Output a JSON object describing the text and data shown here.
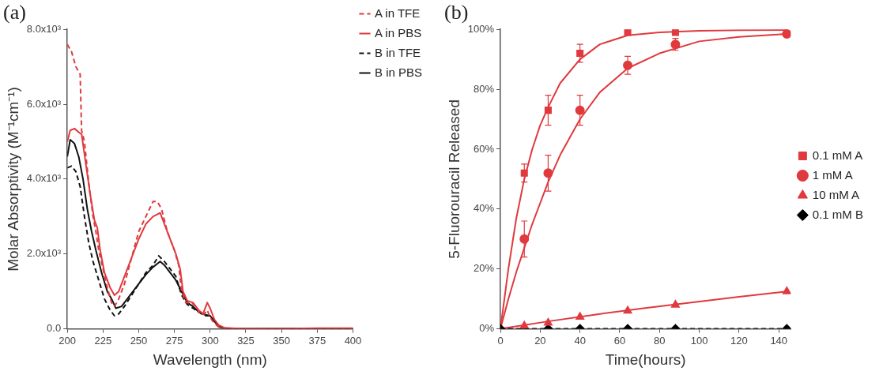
{
  "chart_data": [
    {
      "type": "line",
      "title": "(a)",
      "xlabel": "Wavelength (nm)",
      "ylabel": "Molar Absorptivity (M⁻¹cm⁻¹)",
      "xlim": [
        200,
        400
      ],
      "xticks": [
        200,
        225,
        250,
        275,
        300,
        325,
        350,
        375,
        400
      ],
      "ylim": [
        0,
        8000
      ],
      "yticks": [
        {
          "value": 0,
          "label": "0.0"
        },
        {
          "value": 2000,
          "label": "2.0x10³"
        },
        {
          "value": 4000,
          "label": "4.0x10³"
        },
        {
          "value": 6000,
          "label": "6.0x10³"
        },
        {
          "value": 8000,
          "label": "8.0x10³"
        }
      ],
      "grid": false,
      "legend": "top right",
      "marker": "none",
      "series": [
        {
          "name": "A in TFE",
          "color": "#e0393e",
          "line_style": "dashed",
          "x": [
            200,
            203,
            206,
            209,
            210,
            212,
            215,
            218,
            220,
            222,
            225,
            228,
            231,
            233,
            236,
            240,
            245,
            250,
            255,
            260,
            263,
            266,
            270,
            275,
            278,
            280,
            283,
            287,
            290,
            293,
            296,
            298,
            300,
            303,
            306,
            310,
            320,
            350,
            400
          ],
          "values": [
            7600,
            7400,
            7000,
            6800,
            5300,
            5000,
            3900,
            3000,
            2600,
            2100,
            1600,
            1100,
            700,
            600,
            800,
            1200,
            1900,
            2600,
            3000,
            3400,
            3400,
            3200,
            2600,
            2100,
            1700,
            1000,
            700,
            700,
            600,
            400,
            400,
            500,
            300,
            150,
            50,
            20,
            0,
            0,
            0
          ]
        },
        {
          "name": "A in PBS",
          "color": "#e0393e",
          "line_style": "solid",
          "x": [
            200,
            202,
            205,
            208,
            210,
            213,
            216,
            219,
            221,
            223,
            226,
            230,
            233,
            236,
            240,
            245,
            250,
            255,
            260,
            265,
            268,
            272,
            276,
            279,
            281,
            284,
            288,
            292,
            295,
            298,
            300,
            303,
            306,
            310,
            320,
            350,
            375,
            400
          ],
          "values": [
            5000,
            5300,
            5350,
            5250,
            5200,
            4400,
            3600,
            2900,
            2700,
            2100,
            1500,
            1100,
            900,
            1000,
            1400,
            1900,
            2400,
            2800,
            3000,
            3100,
            2800,
            2400,
            2000,
            1600,
            1000,
            750,
            700,
            500,
            400,
            700,
            550,
            250,
            100,
            30,
            10,
            0,
            20,
            20
          ]
        },
        {
          "name": "B in TFE",
          "color": "#111111",
          "line_style": "dashed",
          "x": [
            200,
            203,
            206,
            209,
            212,
            215,
            218,
            222,
            226,
            230,
            233,
            236,
            240,
            245,
            250,
            255,
            260,
            264,
            268,
            272,
            276,
            280,
            284,
            288,
            292,
            296,
            300,
            303,
            306,
            310,
            320,
            400
          ],
          "values": [
            4300,
            4350,
            4200,
            3800,
            3000,
            2300,
            1800,
            1300,
            800,
            500,
            350,
            400,
            600,
            900,
            1200,
            1500,
            1700,
            1950,
            1800,
            1600,
            1400,
            900,
            650,
            550,
            450,
            350,
            350,
            200,
            60,
            20,
            0,
            0
          ]
        },
        {
          "name": "B in PBS",
          "color": "#111111",
          "line_style": "solid",
          "x": [
            200,
            202,
            205,
            208,
            211,
            214,
            217,
            220,
            224,
            228,
            231,
            234,
            238,
            242,
            246,
            250,
            255,
            260,
            265,
            268,
            272,
            276,
            280,
            284,
            288,
            292,
            296,
            300,
            303,
            306,
            310,
            320,
            400
          ],
          "values": [
            4600,
            5050,
            4950,
            4600,
            4000,
            3200,
            2600,
            2100,
            1500,
            1000,
            800,
            550,
            600,
            800,
            1000,
            1200,
            1450,
            1650,
            1800,
            1700,
            1500,
            1300,
            1000,
            700,
            600,
            450,
            380,
            350,
            200,
            60,
            20,
            0,
            10
          ]
        }
      ]
    },
    {
      "type": "scatter",
      "title": "(b)",
      "xlabel": "Time(hours)",
      "ylabel": "5-Fluorouracil Released",
      "xlim": [
        0,
        146
      ],
      "xticks": [
        0,
        20,
        40,
        60,
        80,
        100,
        120,
        140
      ],
      "ylim": [
        0,
        100
      ],
      "yticks": [
        {
          "value": 0,
          "label": "0%"
        },
        {
          "value": 20,
          "label": "20%"
        },
        {
          "value": 40,
          "label": "40%"
        },
        {
          "value": 60,
          "label": "60%"
        },
        {
          "value": 80,
          "label": "80%"
        },
        {
          "value": 100,
          "label": "100%"
        }
      ],
      "grid": false,
      "legend": "right",
      "series": [
        {
          "name": "0.1 mM A",
          "color": "#e0393e",
          "marker": "square",
          "x": [
            12,
            24,
            40,
            64,
            88
          ],
          "values": [
            52,
            73,
            92,
            99,
            99
          ],
          "errors": [
            3,
            5,
            3,
            null,
            null
          ]
        },
        {
          "name": "1 mM A",
          "color": "#e0393e",
          "marker": "circle",
          "x": [
            12,
            24,
            40,
            64,
            88,
            144
          ],
          "values": [
            30,
            52,
            73,
            88,
            95,
            98.5
          ],
          "errors": [
            6,
            6,
            5,
            3,
            2,
            null
          ]
        },
        {
          "name": "10 mM A",
          "color": "#e0393e",
          "marker": "triangle",
          "x": [
            12,
            24,
            40,
            64,
            88,
            144
          ],
          "values": [
            1,
            2,
            4,
            6,
            8,
            12.5
          ]
        },
        {
          "name": "0.1 mM B",
          "color": "#000000",
          "type": "line",
          "marker": "diamond",
          "line_style": "dashed",
          "x": [
            0,
            12,
            24,
            40,
            64,
            88,
            144
          ],
          "values": [
            0,
            0,
            0,
            0,
            0,
            0,
            0
          ]
        },
        {
          "color": "#e0393e",
          "type": "line",
          "marker": "none",
          "x": [
            0,
            4,
            8,
            12,
            16,
            20,
            24,
            30,
            40,
            50,
            64,
            80,
            100,
            120,
            144
          ],
          "values": [
            0,
            20,
            37,
            50,
            60,
            68,
            74,
            82,
            90,
            95,
            98,
            99,
            99.5,
            99.7,
            99.8
          ]
        },
        {
          "color": "#e0393e",
          "type": "line",
          "marker": "none",
          "x": [
            0,
            4,
            8,
            12,
            16,
            20,
            24,
            30,
            40,
            50,
            64,
            80,
            100,
            120,
            144
          ],
          "values": [
            0,
            10,
            19,
            27,
            35,
            42,
            49,
            58,
            70,
            79,
            87,
            92,
            96,
            97.5,
            98.5
          ]
        },
        {
          "color": "#e0393e",
          "type": "line",
          "marker": "none",
          "x": [
            0,
            24,
            48,
            72,
            96,
            120,
            144
          ],
          "values": [
            0,
            2.5,
            4.8,
            6.9,
            8.8,
            10.7,
            12.5
          ]
        }
      ]
    }
  ]
}
